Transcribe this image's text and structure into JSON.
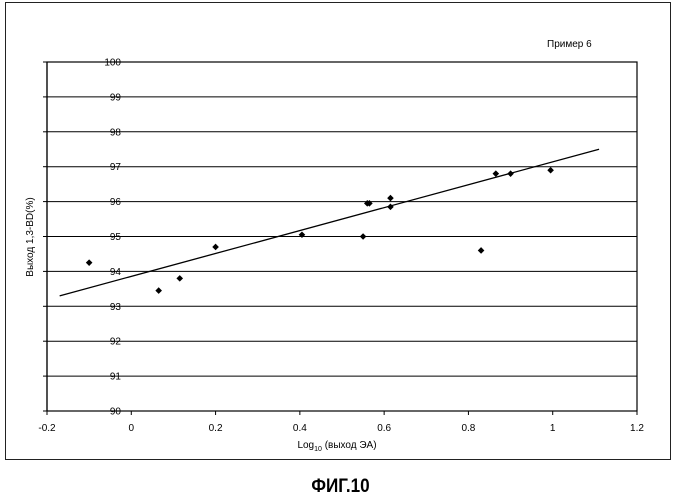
{
  "figure_label": "ФИГ.10",
  "chart_data": {
    "type": "scatter",
    "title": "",
    "note": "Пример 6",
    "xlabel": "Log10 (выход ЭА)",
    "xlabel_main": "Log",
    "xlabel_sub": "10",
    "xlabel_rest": " (выход ЭА)",
    "ylabel": "Выход 1,3-BD(%)",
    "xlim": [
      -0.2,
      1.2
    ],
    "ylim": [
      90,
      100
    ],
    "x_ticks": [
      "-0.2",
      "0",
      "0.2",
      "0.4",
      "0.6",
      "0.8",
      "1",
      "1.2"
    ],
    "y_ticks": [
      "90",
      "91",
      "92",
      "93",
      "94",
      "95",
      "96",
      "97",
      "98",
      "99",
      "100"
    ],
    "grid": "horizontal",
    "series": [
      {
        "marker": "diamond",
        "points": [
          {
            "x": -0.1,
            "y": 94.25
          },
          {
            "x": 0.065,
            "y": 93.45
          },
          {
            "x": 0.115,
            "y": 93.8
          },
          {
            "x": 0.2,
            "y": 94.7
          },
          {
            "x": 0.405,
            "y": 95.05
          },
          {
            "x": 0.55,
            "y": 95.0
          },
          {
            "x": 0.56,
            "y": 95.95
          },
          {
            "x": 0.565,
            "y": 95.95
          },
          {
            "x": 0.615,
            "y": 96.1
          },
          {
            "x": 0.615,
            "y": 95.85
          },
          {
            "x": 0.83,
            "y": 94.6
          },
          {
            "x": 0.865,
            "y": 96.8
          },
          {
            "x": 0.9,
            "y": 96.8
          },
          {
            "x": 0.995,
            "y": 96.9
          }
        ]
      }
    ],
    "trendline": {
      "x": [
        -0.17,
        1.11
      ],
      "y": [
        93.3,
        97.5
      ]
    }
  }
}
